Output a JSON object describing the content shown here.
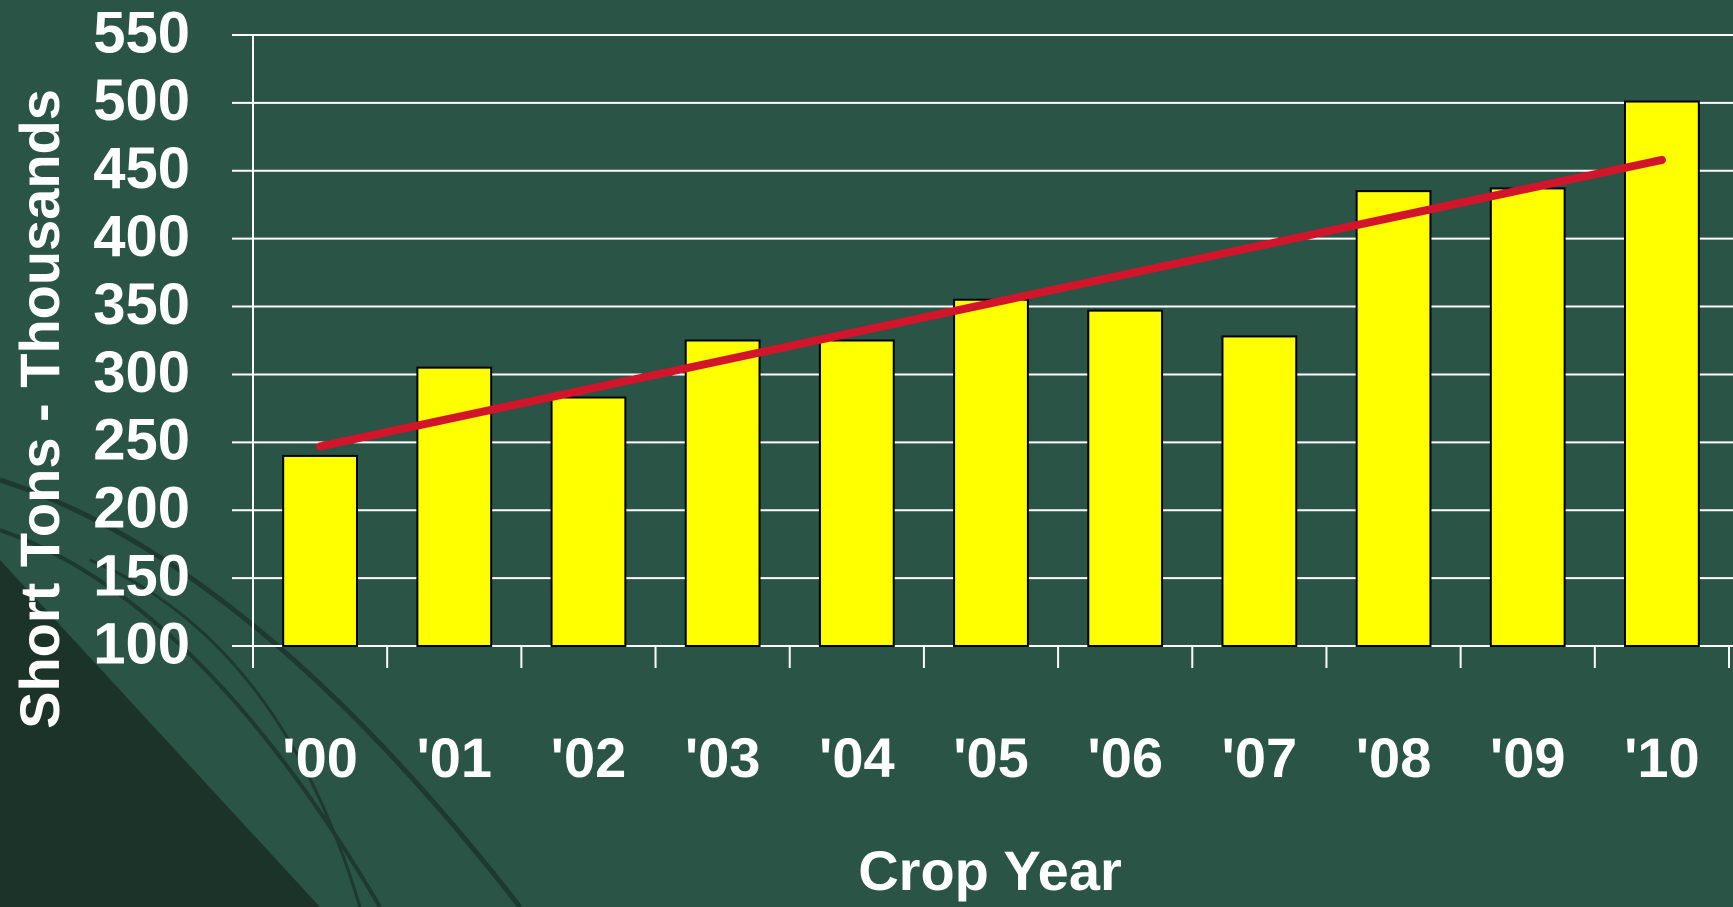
{
  "chart_data": {
    "type": "bar",
    "x_label": "Crop Year",
    "y_label": "Short Tons - Thousands",
    "categories": [
      "'00",
      "'01",
      "'02",
      "'03",
      "'04",
      "'05",
      "'06",
      "'07",
      "'08",
      "'09",
      "'10"
    ],
    "values": [
      240,
      305,
      283,
      325,
      325,
      355,
      347,
      328,
      435,
      437,
      501
    ],
    "color": "#ffff00",
    "trendline": {
      "color": "#d2152b",
      "values": [
        247,
        458
      ]
    },
    "ylim": [
      100,
      550
    ],
    "yticks": [
      100,
      150,
      200,
      250,
      300,
      350,
      400,
      450,
      500,
      550
    ],
    "grid": true
  }
}
